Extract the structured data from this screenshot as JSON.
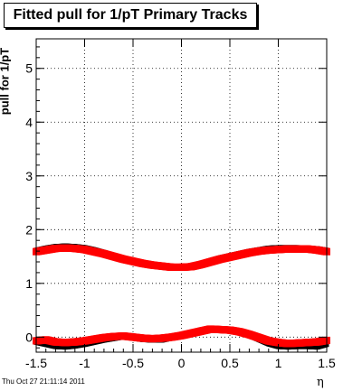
{
  "title": "Fitted pull for 1/pT  Primary Tracks",
  "footer_timestamp": "Thu Oct 27 21:11:14 2011",
  "chart_data": {
    "type": "scatter",
    "title": "Fitted pull for 1/pT  Primary Tracks",
    "xlabel": "η",
    "ylabel": "pull for 1/pT",
    "xlim": [
      -1.5,
      1.5
    ],
    "ylim": [
      -0.28,
      5.55
    ],
    "xticks": [
      "-1.5",
      "-1",
      "-0.5",
      "0",
      "0.5",
      "1",
      "1.5"
    ],
    "yticks": [
      "0",
      "1",
      "2",
      "3",
      "4",
      "5"
    ],
    "grid": true,
    "series": [
      {
        "color": "#000000",
        "x": [
          -1.5,
          -1.4,
          -1.3,
          -1.2,
          -1.1,
          -1.0,
          -0.9,
          -0.8,
          -0.7,
          -0.6,
          -0.5,
          -0.4,
          -0.3,
          -0.2,
          -0.1,
          0.0,
          0.1,
          0.2,
          0.3,
          0.4,
          0.5,
          0.6,
          0.7,
          0.8,
          0.9,
          1.0,
          1.1,
          1.2,
          1.3,
          1.4,
          1.5
        ],
        "y": [
          1.62,
          1.66,
          1.69,
          1.7,
          1.69,
          1.67,
          1.63,
          1.58,
          1.52,
          1.46,
          1.42,
          1.39,
          1.36,
          1.33,
          1.31,
          1.3,
          1.32,
          1.37,
          1.43,
          1.48,
          1.52,
          1.56,
          1.6,
          1.63,
          1.66,
          1.67,
          1.67,
          1.67,
          1.66,
          1.65,
          1.62
        ]
      },
      {
        "color": "#000000",
        "x": [
          -1.5,
          -1.4,
          -1.3,
          -1.2,
          -1.1,
          -1.0,
          -0.9,
          -0.8,
          -0.7,
          -0.6,
          -0.5,
          -0.4,
          -0.3,
          -0.2,
          -0.1,
          0.0,
          0.1,
          0.2,
          0.3,
          0.4,
          0.5,
          0.6,
          0.7,
          0.8,
          0.9,
          1.0,
          1.1,
          1.2,
          1.3,
          1.4,
          1.5
        ],
        "y": [
          -0.1,
          -0.14,
          -0.18,
          -0.19,
          -0.17,
          -0.14,
          -0.1,
          -0.06,
          -0.03,
          0.0,
          -0.02,
          -0.05,
          -0.06,
          -0.06,
          -0.02,
          0.02,
          0.08,
          0.14,
          0.16,
          0.14,
          0.12,
          0.09,
          0.03,
          -0.05,
          -0.13,
          -0.18,
          -0.19,
          -0.18,
          -0.18,
          -0.19,
          -0.14
        ]
      },
      {
        "color": "#ff0000",
        "x": [
          -1.5,
          -1.4,
          -1.3,
          -1.2,
          -1.1,
          -1.0,
          -0.9,
          -0.8,
          -0.7,
          -0.6,
          -0.5,
          -0.4,
          -0.3,
          -0.2,
          -0.1,
          0.0,
          0.1,
          0.2,
          0.3,
          0.4,
          0.5,
          0.6,
          0.7,
          0.8,
          0.9,
          1.0,
          1.1,
          1.2,
          1.3,
          1.4,
          1.5
        ],
        "y": [
          1.59,
          1.62,
          1.65,
          1.66,
          1.65,
          1.63,
          1.59,
          1.55,
          1.5,
          1.45,
          1.41,
          1.37,
          1.34,
          1.32,
          1.3,
          1.3,
          1.31,
          1.35,
          1.4,
          1.45,
          1.49,
          1.53,
          1.57,
          1.6,
          1.62,
          1.63,
          1.64,
          1.64,
          1.64,
          1.62,
          1.59
        ]
      },
      {
        "color": "#ff0000",
        "x": [
          -1.5,
          -1.4,
          -1.3,
          -1.2,
          -1.1,
          -1.0,
          -0.9,
          -0.8,
          -0.7,
          -0.6,
          -0.5,
          -0.4,
          -0.3,
          -0.2,
          -0.1,
          0.0,
          0.1,
          0.2,
          0.3,
          0.4,
          0.5,
          0.6,
          0.7,
          0.8,
          0.9,
          1.0,
          1.1,
          1.2,
          1.3,
          1.4,
          1.5
        ],
        "y": [
          -0.07,
          -0.05,
          -0.09,
          -0.1,
          -0.09,
          -0.07,
          -0.04,
          -0.01,
          0.01,
          0.02,
          0.0,
          -0.02,
          -0.03,
          -0.02,
          0.0,
          0.03,
          0.07,
          0.11,
          0.15,
          0.14,
          0.13,
          0.1,
          0.05,
          -0.01,
          -0.07,
          -0.1,
          -0.12,
          -0.11,
          -0.1,
          -0.09,
          -0.06
        ]
      }
    ]
  }
}
